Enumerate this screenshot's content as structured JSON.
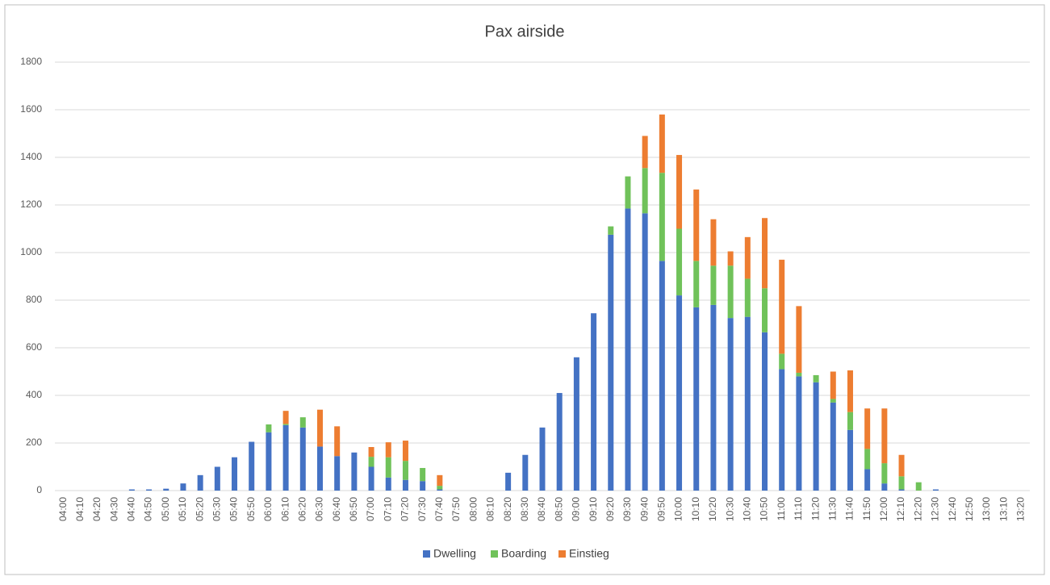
{
  "chart_data": {
    "type": "stacked_bar",
    "title": "Pax airside",
    "categories": [
      "04:00",
      "04:10",
      "04:20",
      "04:30",
      "04:40",
      "04:50",
      "05:00",
      "05:10",
      "05:20",
      "05:30",
      "05:40",
      "05:50",
      "06:00",
      "06:10",
      "06:20",
      "06:30",
      "06:40",
      "06:50",
      "07:00",
      "07:10",
      "07:20",
      "07:30",
      "07:40",
      "07:50",
      "08:00",
      "08:10",
      "08:20",
      "08:30",
      "08:40",
      "08:50",
      "09:00",
      "09:10",
      "09:20",
      "09:30",
      "09:40",
      "09:50",
      "10:00",
      "10:10",
      "10:20",
      "10:30",
      "10:40",
      "10:50",
      "11:00",
      "11:10",
      "11:20",
      "11:30",
      "11:40",
      "11:50",
      "12:00",
      "12:10",
      "12:20",
      "12:30",
      "12:40",
      "12:50",
      "13:00",
      "13:10",
      "13:20"
    ],
    "series": [
      {
        "name": "Dwelling",
        "color": "#4472c4",
        "values": [
          0,
          0,
          0,
          0,
          5,
          5,
          8,
          30,
          65,
          100,
          140,
          205,
          245,
          275,
          265,
          185,
          145,
          160,
          100,
          55,
          45,
          40,
          5,
          0,
          0,
          0,
          75,
          150,
          265,
          410,
          560,
          745,
          1075,
          1185,
          1165,
          965,
          820,
          770,
          780,
          725,
          730,
          665,
          510,
          480,
          455,
          370,
          255,
          90,
          30,
          5,
          0,
          5,
          0,
          0,
          0,
          0,
          0
        ]
      },
      {
        "name": "Boarding",
        "color": "#70c25a",
        "values": [
          0,
          0,
          0,
          0,
          0,
          0,
          0,
          0,
          0,
          0,
          0,
          0,
          33,
          5,
          43,
          0,
          0,
          0,
          42,
          85,
          80,
          55,
          15,
          0,
          0,
          0,
          0,
          0,
          0,
          0,
          0,
          0,
          35,
          135,
          190,
          370,
          280,
          195,
          165,
          220,
          160,
          185,
          65,
          15,
          30,
          15,
          75,
          85,
          85,
          55,
          35,
          0,
          0,
          0,
          0,
          0,
          0
        ]
      },
      {
        "name": "Einstieg",
        "color": "#ed7d31",
        "values": [
          0,
          0,
          0,
          0,
          0,
          0,
          0,
          0,
          0,
          0,
          0,
          0,
          0,
          55,
          0,
          155,
          125,
          0,
          41,
          63,
          85,
          0,
          45,
          0,
          0,
          0,
          0,
          0,
          0,
          0,
          0,
          0,
          0,
          0,
          135,
          245,
          310,
          300,
          195,
          60,
          175,
          295,
          395,
          280,
          0,
          115,
          175,
          170,
          230,
          90,
          0,
          0,
          0,
          0,
          0,
          0,
          0
        ]
      }
    ],
    "ylim": [
      0,
      1800
    ],
    "yticks": [
      0,
      200,
      400,
      600,
      800,
      1000,
      1200,
      1400,
      1600,
      1800
    ],
    "grid": true,
    "legend": "bottom"
  }
}
